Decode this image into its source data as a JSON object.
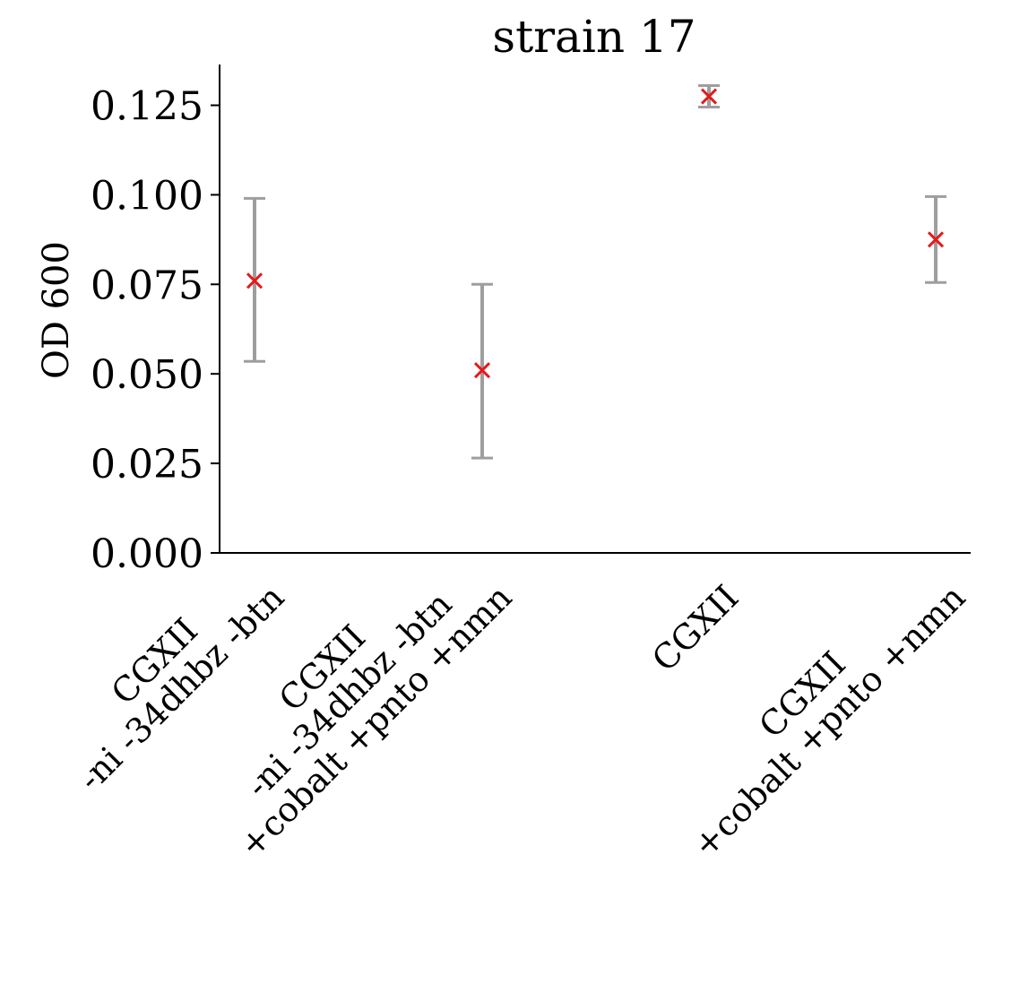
{
  "chart_data": {
    "type": "scatter",
    "title": "strain 17",
    "xlabel": "",
    "ylabel": "OD 600",
    "ylim": [
      0,
      0.1365
    ],
    "yticks": [
      "0.000",
      "0.025",
      "0.050",
      "0.075",
      "0.100",
      "0.125"
    ],
    "ytick_values": [
      0,
      0.025,
      0.05,
      0.075,
      0.1,
      0.125
    ],
    "grid": false,
    "categories": [
      [
        "CGXII",
        "-ni -34dhbz -btn"
      ],
      [
        "CGXII",
        "-ni -34dhbz -btn",
        "+cobalt +pnto +nmn"
      ],
      [
        "CGXII"
      ],
      [
        "CGXII",
        "+cobalt +pnto +nmn"
      ]
    ],
    "values": [
      0.076,
      0.051,
      0.1275,
      0.0875
    ],
    "errors": [
      [
        0.0535,
        0.099
      ],
      [
        0.0265,
        0.075
      ],
      [
        0.1245,
        0.1305
      ],
      [
        0.0755,
        0.0995
      ]
    ],
    "colors": {
      "marker": "#e31a1c",
      "errorbar": "#9e9e9e",
      "axis": "#000000"
    },
    "marker": "x"
  }
}
